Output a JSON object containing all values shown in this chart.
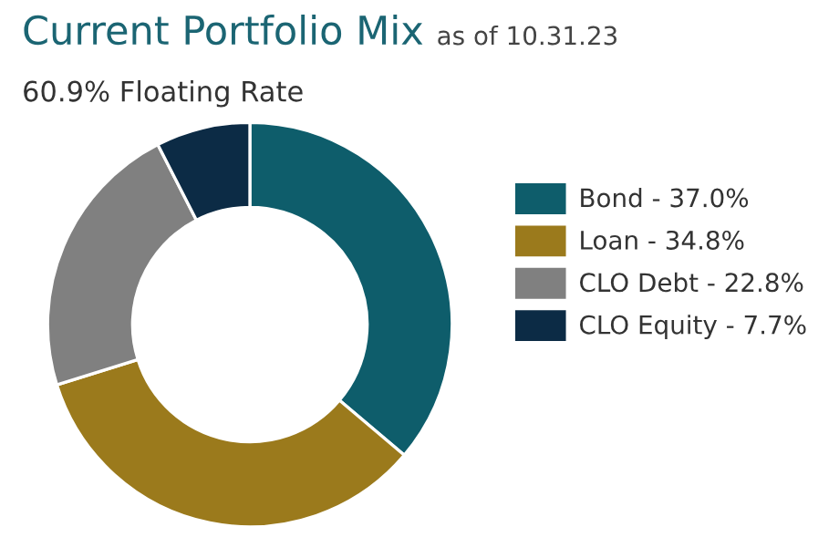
{
  "chart_data": {
    "type": "donut",
    "title": "Current Portfolio Mix",
    "subtitle": "60.9% Floating Rate",
    "annotations": [
      "as of 10.31.23"
    ],
    "categories": [
      "Bond",
      "Loan",
      "CLO Debt",
      "CLO Equity"
    ],
    "values": [
      37.0,
      34.8,
      22.8,
      7.7
    ],
    "value_labels": [
      "37.0%",
      "34.8%",
      "22.8%",
      "7.7%"
    ],
    "colors": [
      "#0e5d6b",
      "#9b7a1c",
      "#808080",
      "#0c2b45"
    ],
    "legend": "right"
  }
}
